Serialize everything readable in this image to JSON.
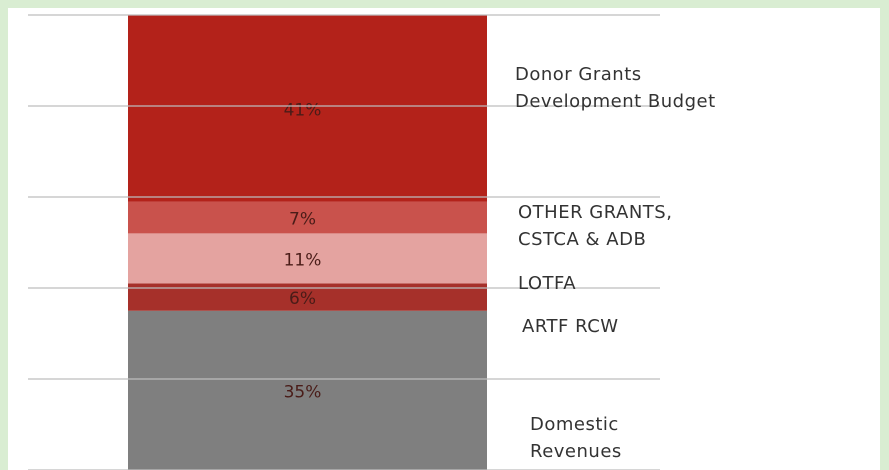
{
  "chart_data": {
    "type": "bar",
    "stacked": true,
    "categories": [
      null
    ],
    "ylim": [
      0,
      100
    ],
    "yticks": [
      0,
      20,
      40,
      60,
      80,
      100
    ],
    "grid": true,
    "series": [
      {
        "name": "Domestic\nRevenues",
        "color": "#7f7f7f",
        "values": [
          35
        ],
        "value_labels": [
          "35%"
        ]
      },
      {
        "name": "ARTF RCW",
        "color": "#a6302a",
        "values": [
          6
        ],
        "value_labels": [
          "6%"
        ]
      },
      {
        "name": "LOTFA",
        "color": "#e4a3a0",
        "values": [
          11
        ],
        "value_labels": [
          "11%"
        ]
      },
      {
        "name": "OTHER  GRANTS,\nCSTCA & ADB",
        "color": "#c9524c",
        "values": [
          7
        ],
        "value_labels": [
          "7%"
        ]
      },
      {
        "name": "Donor Grants\nDevelopment Budget",
        "color": "#b3221a",
        "values": [
          41
        ],
        "value_labels": [
          "41%"
        ]
      }
    ]
  }
}
